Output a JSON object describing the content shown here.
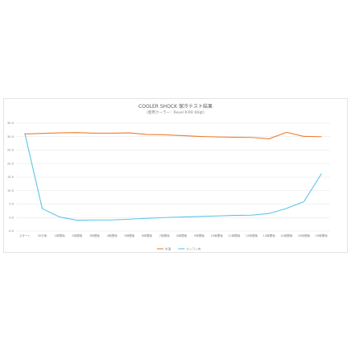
{
  "chart_data": {
    "type": "line",
    "title": "COOLER SHOCK 保冷テスト結果",
    "subtitle": "(使用クーラー：Revel R-RR 60qt)",
    "xlabel": "",
    "ylabel": "",
    "ylim": [
      -5,
      35
    ],
    "yticks": [
      "35.0",
      "30.0",
      "25.0",
      "20.0",
      "15.0",
      "10.0",
      "5.0",
      "0.0",
      "-5.0"
    ],
    "grid": true,
    "legend_position": "bottom",
    "categories": [
      "スタート",
      "30分後",
      "1時間後",
      "2時間後",
      "3時間後",
      "4時間後",
      "5時間後",
      "6時間後",
      "7時間後",
      "8時間後",
      "9時間後",
      "10時間後",
      "11時間後",
      "12時間後",
      "13時間後",
      "14時間後",
      "15時間後",
      "16時間後"
    ],
    "series": [
      {
        "name": "外温",
        "color": "#ED7D31",
        "values": [
          31.0,
          31.2,
          31.4,
          31.5,
          31.3,
          31.3,
          31.4,
          30.8,
          30.7,
          30.4,
          30.1,
          29.9,
          29.8,
          29.7,
          29.2,
          31.6,
          30.1,
          30.0
        ]
      },
      {
        "name": "クーラー内",
        "color": "#5BC4E8",
        "values": [
          31.2,
          3.3,
          0.2,
          -1.0,
          -0.9,
          -0.9,
          -0.6,
          -0.3,
          0.0,
          0.2,
          0.4,
          0.6,
          0.8,
          0.9,
          1.5,
          3.4,
          5.9,
          16.2
        ]
      }
    ]
  }
}
